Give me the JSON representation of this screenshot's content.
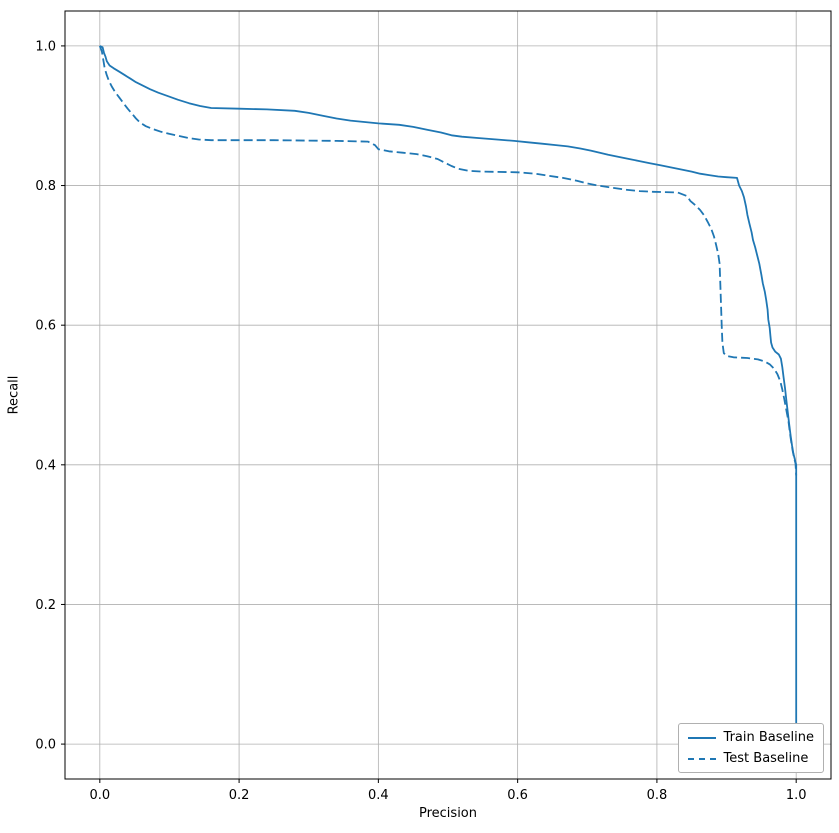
{
  "figure": {
    "background": "#ffffff",
    "axes_facecolor": "#ffffff",
    "grid_color": "#b0b0b0",
    "spine_color": "#000000",
    "accent_color": "#1f77b4"
  },
  "chart_data": {
    "type": "line",
    "title": "",
    "xlabel": "Precision",
    "ylabel": "Recall",
    "xlim": [
      -0.05,
      1.05
    ],
    "ylim": [
      -0.05,
      1.05
    ],
    "xticks": [
      0.0,
      0.2,
      0.4,
      0.6,
      0.8,
      1.0
    ],
    "yticks": [
      0.0,
      0.2,
      0.4,
      0.6,
      0.8,
      1.0
    ],
    "grid": true,
    "legend_position": "lower right",
    "series": [
      {
        "name": "Train Baseline",
        "style": "solid",
        "color": "#1f77b4",
        "points": [
          [
            0.0,
            1.0
          ],
          [
            0.004,
            0.998
          ],
          [
            0.006,
            0.99
          ],
          [
            0.008,
            0.985
          ],
          [
            0.01,
            0.978
          ],
          [
            0.014,
            0.972
          ],
          [
            0.02,
            0.968
          ],
          [
            0.028,
            0.963
          ],
          [
            0.036,
            0.958
          ],
          [
            0.044,
            0.953
          ],
          [
            0.052,
            0.948
          ],
          [
            0.062,
            0.943
          ],
          [
            0.072,
            0.938
          ],
          [
            0.084,
            0.933
          ],
          [
            0.098,
            0.928
          ],
          [
            0.112,
            0.923
          ],
          [
            0.128,
            0.918
          ],
          [
            0.144,
            0.914
          ],
          [
            0.16,
            0.911
          ],
          [
            0.2,
            0.91
          ],
          [
            0.24,
            0.909
          ],
          [
            0.28,
            0.907
          ],
          [
            0.3,
            0.904
          ],
          [
            0.32,
            0.9
          ],
          [
            0.34,
            0.896
          ],
          [
            0.36,
            0.893
          ],
          [
            0.38,
            0.891
          ],
          [
            0.4,
            0.889
          ],
          [
            0.43,
            0.887
          ],
          [
            0.45,
            0.884
          ],
          [
            0.47,
            0.88
          ],
          [
            0.49,
            0.876
          ],
          [
            0.505,
            0.872
          ],
          [
            0.52,
            0.87
          ],
          [
            0.545,
            0.868
          ],
          [
            0.57,
            0.866
          ],
          [
            0.595,
            0.864
          ],
          [
            0.615,
            0.862
          ],
          [
            0.635,
            0.86
          ],
          [
            0.655,
            0.858
          ],
          [
            0.672,
            0.856
          ],
          [
            0.69,
            0.853
          ],
          [
            0.705,
            0.85
          ],
          [
            0.718,
            0.847
          ],
          [
            0.73,
            0.844
          ],
          [
            0.745,
            0.841
          ],
          [
            0.76,
            0.838
          ],
          [
            0.775,
            0.835
          ],
          [
            0.79,
            0.832
          ],
          [
            0.805,
            0.829
          ],
          [
            0.82,
            0.826
          ],
          [
            0.835,
            0.823
          ],
          [
            0.85,
            0.82
          ],
          [
            0.862,
            0.817
          ],
          [
            0.875,
            0.815
          ],
          [
            0.888,
            0.813
          ],
          [
            0.9,
            0.812
          ],
          [
            0.915,
            0.811
          ],
          [
            0.918,
            0.8
          ],
          [
            0.922,
            0.792
          ],
          [
            0.925,
            0.783
          ],
          [
            0.928,
            0.77
          ],
          [
            0.93,
            0.758
          ],
          [
            0.933,
            0.745
          ],
          [
            0.936,
            0.733
          ],
          [
            0.938,
            0.722
          ],
          [
            0.941,
            0.712
          ],
          [
            0.944,
            0.7
          ],
          [
            0.947,
            0.688
          ],
          [
            0.95,
            0.672
          ],
          [
            0.952,
            0.66
          ],
          [
            0.955,
            0.648
          ],
          [
            0.957,
            0.636
          ],
          [
            0.959,
            0.622
          ],
          [
            0.96,
            0.608
          ],
          [
            0.962,
            0.596
          ],
          [
            0.963,
            0.585
          ],
          [
            0.964,
            0.575
          ],
          [
            0.966,
            0.568
          ],
          [
            0.97,
            0.562
          ],
          [
            0.975,
            0.558
          ],
          [
            0.978,
            0.552
          ],
          [
            0.98,
            0.54
          ],
          [
            0.982,
            0.525
          ],
          [
            0.984,
            0.51
          ],
          [
            0.986,
            0.492
          ],
          [
            0.988,
            0.475
          ],
          [
            0.99,
            0.458
          ],
          [
            0.992,
            0.442
          ],
          [
            0.994,
            0.428
          ],
          [
            0.996,
            0.416
          ],
          [
            0.998,
            0.408
          ],
          [
            1.0,
            0.4
          ],
          [
            1.0,
            0.02
          ]
        ]
      },
      {
        "name": "Test Baseline",
        "style": "dashed",
        "color": "#1f77b4",
        "points": [
          [
            0.0,
            1.0
          ],
          [
            0.003,
            0.992
          ],
          [
            0.005,
            0.98
          ],
          [
            0.007,
            0.968
          ],
          [
            0.01,
            0.958
          ],
          [
            0.013,
            0.95
          ],
          [
            0.017,
            0.942
          ],
          [
            0.022,
            0.934
          ],
          [
            0.028,
            0.926
          ],
          [
            0.034,
            0.918
          ],
          [
            0.04,
            0.91
          ],
          [
            0.046,
            0.903
          ],
          [
            0.052,
            0.896
          ],
          [
            0.058,
            0.89
          ],
          [
            0.066,
            0.885
          ],
          [
            0.076,
            0.881
          ],
          [
            0.088,
            0.877
          ],
          [
            0.1,
            0.874
          ],
          [
            0.114,
            0.871
          ],
          [
            0.128,
            0.868
          ],
          [
            0.142,
            0.866
          ],
          [
            0.16,
            0.865
          ],
          [
            0.25,
            0.865
          ],
          [
            0.34,
            0.864
          ],
          [
            0.385,
            0.863
          ],
          [
            0.395,
            0.858
          ],
          [
            0.4,
            0.852
          ],
          [
            0.415,
            0.849
          ],
          [
            0.435,
            0.847
          ],
          [
            0.455,
            0.845
          ],
          [
            0.47,
            0.842
          ],
          [
            0.485,
            0.838
          ],
          [
            0.495,
            0.833
          ],
          [
            0.505,
            0.828
          ],
          [
            0.515,
            0.824
          ],
          [
            0.53,
            0.821
          ],
          [
            0.55,
            0.82
          ],
          [
            0.6,
            0.819
          ],
          [
            0.625,
            0.817
          ],
          [
            0.645,
            0.814
          ],
          [
            0.665,
            0.811
          ],
          [
            0.685,
            0.807
          ],
          [
            0.7,
            0.803
          ],
          [
            0.715,
            0.8
          ],
          [
            0.735,
            0.797
          ],
          [
            0.755,
            0.794
          ],
          [
            0.775,
            0.792
          ],
          [
            0.795,
            0.791
          ],
          [
            0.83,
            0.79
          ],
          [
            0.843,
            0.785
          ],
          [
            0.848,
            0.778
          ],
          [
            0.855,
            0.772
          ],
          [
            0.862,
            0.765
          ],
          [
            0.868,
            0.757
          ],
          [
            0.873,
            0.748
          ],
          [
            0.878,
            0.738
          ],
          [
            0.882,
            0.727
          ],
          [
            0.885,
            0.715
          ],
          [
            0.888,
            0.702
          ],
          [
            0.89,
            0.688
          ],
          [
            0.891,
            0.66
          ],
          [
            0.892,
            0.63
          ],
          [
            0.893,
            0.6
          ],
          [
            0.894,
            0.575
          ],
          [
            0.896,
            0.56
          ],
          [
            0.9,
            0.556
          ],
          [
            0.91,
            0.554
          ],
          [
            0.93,
            0.553
          ],
          [
            0.945,
            0.551
          ],
          [
            0.955,
            0.548
          ],
          [
            0.962,
            0.544
          ],
          [
            0.968,
            0.538
          ],
          [
            0.973,
            0.53
          ],
          [
            0.977,
            0.52
          ],
          [
            0.98,
            0.508
          ],
          [
            0.983,
            0.494
          ],
          [
            0.986,
            0.478
          ],
          [
            0.989,
            0.462
          ],
          [
            0.991,
            0.446
          ],
          [
            0.993,
            0.432
          ],
          [
            0.995,
            0.42
          ],
          [
            0.997,
            0.41
          ],
          [
            0.999,
            0.402
          ],
          [
            1.0,
            0.385
          ]
        ]
      }
    ]
  }
}
